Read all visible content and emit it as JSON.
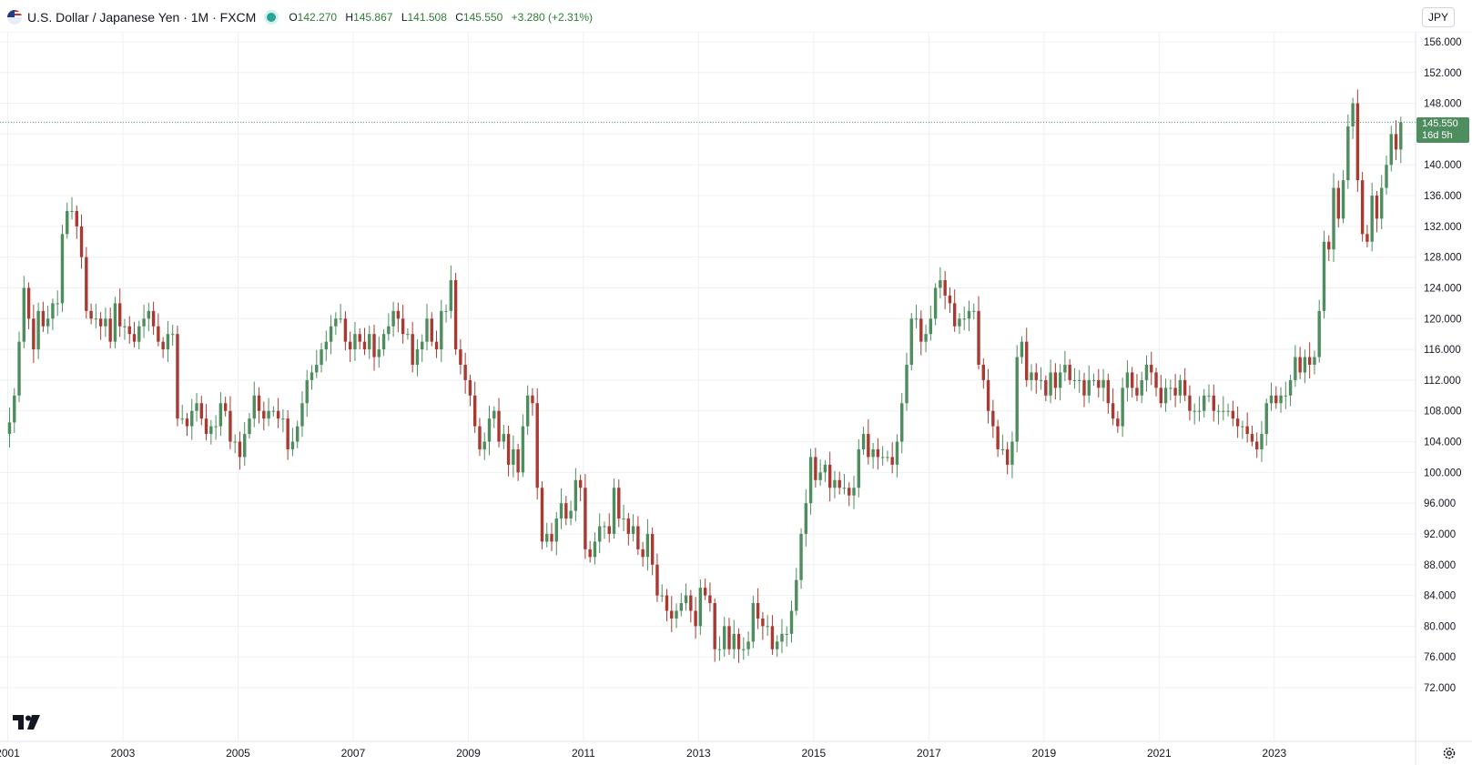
{
  "header": {
    "symbol_title": "U.S. Dollar / Japanese Yen · 1M · FXCM",
    "open_label": "O",
    "open_value": "142.270",
    "high_label": "H",
    "high_value": "145.867",
    "low_label": "L",
    "low_value": "141.508",
    "close_label": "C",
    "close_value": "145.550",
    "change": "+3.280 (+2.31%)",
    "currency_button": "JPY"
  },
  "last_price": {
    "value": "145.550",
    "countdown": "16d 5h"
  },
  "colors": {
    "up": "#4e8d5e",
    "down": "#a83a32",
    "grid": "#eef0f3",
    "price_line": "#4e8d5e"
  },
  "icons": [
    "us-flag-icon",
    "market-status-dot-icon",
    "tradingview-logo-icon",
    "settings-gear-icon"
  ],
  "chart_data": {
    "type": "candlestick",
    "ylim": [
      70,
      158
    ],
    "yticks": [
      "156.000",
      "152.000",
      "148.000",
      "144.000",
      "140.000",
      "136.000",
      "132.000",
      "128.000",
      "124.000",
      "120.000",
      "116.000",
      "112.000",
      "108.000",
      "104.000",
      "100.000",
      "96.000",
      "92.000",
      "88.000",
      "84.000",
      "80.000",
      "76.000",
      "72.000"
    ],
    "xticks": [
      "2001",
      "2003",
      "2005",
      "2007",
      "2009",
      "2011",
      "2013",
      "2015",
      "2017",
      "2019",
      "2021",
      "2023"
    ],
    "x_start": "2001-01",
    "monthly_close": [
      106.5,
      110,
      117,
      124,
      120,
      116,
      121,
      119,
      120,
      122,
      122,
      131,
      134,
      134,
      132,
      128,
      121,
      120,
      120,
      119,
      120,
      117,
      122,
      119,
      119,
      118,
      117,
      119,
      120,
      121,
      119,
      117,
      116,
      118,
      118,
      107,
      107,
      106,
      108,
      109,
      107,
      105,
      106,
      106,
      109,
      108,
      104,
      104,
      102,
      105,
      107,
      110,
      108,
      107,
      108,
      108,
      107,
      107,
      103,
      104,
      106,
      109,
      112,
      113,
      114,
      116,
      117,
      119,
      120,
      120,
      117,
      116,
      118,
      117,
      116,
      118,
      115,
      116,
      118,
      119,
      121,
      120,
      118,
      118,
      114,
      116,
      117,
      120,
      117,
      116,
      121,
      121,
      125,
      116,
      114,
      112,
      110,
      106,
      103,
      104,
      107,
      108,
      104,
      105,
      101,
      103,
      100,
      106,
      110,
      109,
      98,
      91,
      92,
      91,
      94,
      96,
      94,
      95,
      99,
      98,
      90,
      89,
      91,
      93,
      93,
      92,
      98,
      94,
      94,
      92,
      93,
      90,
      89,
      92,
      88,
      84,
      84,
      82,
      81,
      82,
      83,
      84,
      82,
      80,
      85,
      84,
      83,
      77,
      77,
      80,
      77,
      79,
      77,
      77,
      78,
      83,
      81,
      80,
      80,
      77,
      78,
      79,
      79,
      82,
      86,
      92,
      96,
      102,
      99,
      100,
      101,
      98,
      99,
      98,
      98,
      97,
      98,
      103,
      105,
      102,
      103,
      102,
      102,
      102,
      101,
      104,
      109,
      114,
      120,
      120,
      117,
      118,
      120,
      124,
      125,
      123,
      122,
      119,
      120,
      120,
      121,
      121,
      114,
      112,
      108,
      106,
      103,
      103,
      101,
      104,
      115,
      117,
      112,
      113,
      112,
      112,
      110,
      113,
      111,
      113,
      114,
      112,
      112,
      112,
      110,
      112,
      112,
      111,
      112,
      109,
      107,
      106,
      111,
      113,
      111,
      110,
      112,
      114,
      113,
      111,
      109,
      111,
      111,
      110,
      112,
      110,
      108,
      108,
      108,
      110,
      110,
      108,
      108,
      108,
      108,
      107,
      106,
      106,
      105,
      104,
      103,
      105,
      109,
      110,
      109,
      110,
      110,
      112,
      115,
      113,
      115,
      114,
      115,
      121,
      130,
      129,
      137,
      133,
      138,
      145,
      148,
      138,
      131,
      130,
      136,
      133,
      137,
      140,
      144,
      142,
      145.55
    ]
  }
}
